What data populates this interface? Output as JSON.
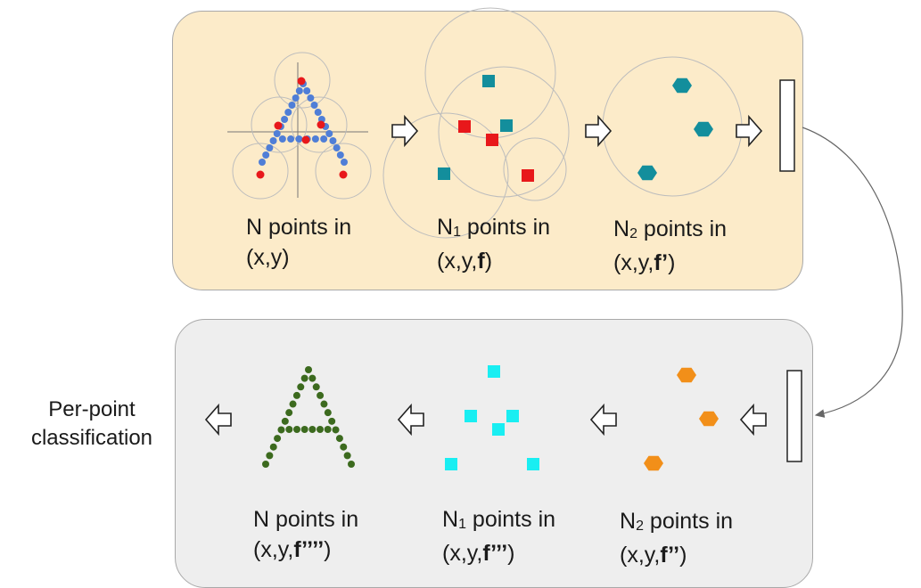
{
  "top_stage": {
    "label_a": {
      "line1": "N points in",
      "line2": "(x,y)"
    },
    "label_b": {
      "n": "N",
      "sub": "1",
      "rest": " points in",
      "line2_pre": "(x,y,",
      "line2_bold": "f",
      "line2_post": ")"
    },
    "label_c": {
      "n": "N",
      "sub": "2",
      "rest": " points in",
      "line2_pre": "(x,y,",
      "line2_bold": "f’",
      "line2_post": ")"
    }
  },
  "bottom_stage": {
    "label_a": {
      "line1": "N points in",
      "line2_pre": "(x,y,",
      "line2_bold": "f’’’’",
      "line2_post": ")"
    },
    "label_b": {
      "n": "N",
      "sub": "1",
      "rest": " points in",
      "line2_pre": "(x,y,",
      "line2_bold": "f’’’",
      "line2_post": ")"
    },
    "label_c": {
      "n": "N",
      "sub": "2",
      "rest": " points in",
      "line2_pre": "(x,y,",
      "line2_bold": "f’’",
      "line2_post": ")"
    }
  },
  "output_label": {
    "line1": "Per-point",
    "line2": "classification"
  },
  "colors": {
    "top_panel": "#fcebc9",
    "bottom_panel": "#eeeeee",
    "blue_point": "#4f7ed7",
    "red_point": "#e8181b",
    "teal": "#138e9c",
    "cyan": "#19eef2",
    "orange": "#f28f19",
    "green": "#3c6a1e"
  }
}
